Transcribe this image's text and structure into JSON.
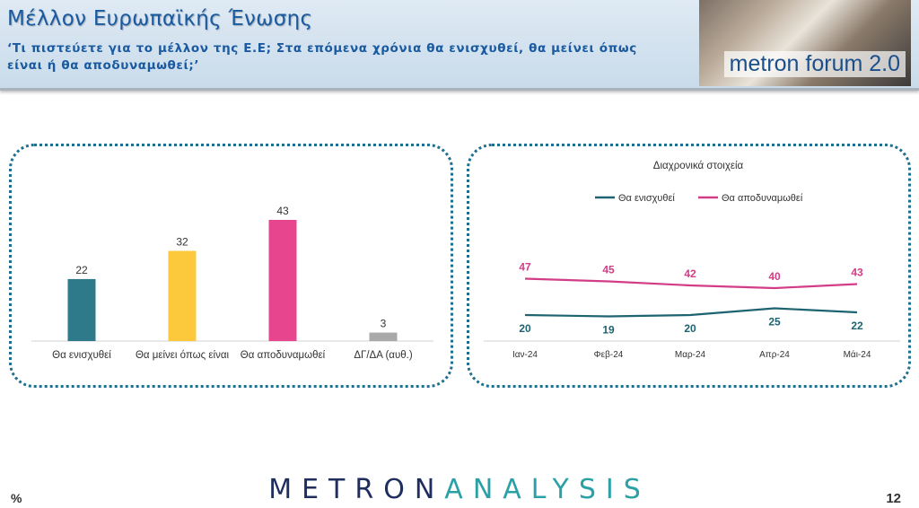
{
  "header": {
    "title": "Μέλλον Ευρωπαϊκής Ένωσης",
    "subtitle": "‘Τι πιστεύετε για το μέλλον της Ε.Ε; Στα επόμενα χρόνια θα ενισχυθεί, θα μείνει όπως είναι ή θα αποδυναμωθεί;’",
    "forum_label": "metron forum 2.0"
  },
  "footer": {
    "logo_part1": "METRON",
    "logo_part2": "ANALYSIS",
    "unit": "%",
    "page_number": "12"
  },
  "chart_data": [
    {
      "type": "bar",
      "categories": [
        "Θα ενισχυθεί",
        "Θα μείνει όπως είναι",
        "Θα αποδυναμωθεί",
        "ΔΓ/ΔΑ (αυθ.)"
      ],
      "values": [
        22,
        32,
        43,
        3
      ],
      "colors": [
        "#2e7a8a",
        "#fcc93d",
        "#e8458f",
        "#a9a9a9"
      ],
      "ylim": [
        0,
        50
      ]
    },
    {
      "type": "line",
      "title": "Διαχρονικά στοιχεία",
      "categories": [
        "Ιαν-24",
        "Φεβ-24",
        "Μαρ-24",
        "Απρ-24",
        "Μάι-24"
      ],
      "series": [
        {
          "name": "Θα ενισχυθεί",
          "values": [
            20,
            19,
            20,
            25,
            22
          ],
          "color": "#1d6370"
        },
        {
          "name": "Θα αποδυναμωθεί",
          "values": [
            47,
            45,
            42,
            40,
            43
          ],
          "color": "#d33d87"
        }
      ],
      "legend_position": "top"
    }
  ]
}
